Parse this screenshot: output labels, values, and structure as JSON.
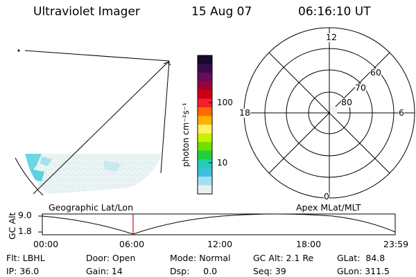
{
  "header": {
    "instrument": "Ultraviolet Imager",
    "date": "15 Aug 07",
    "time": "06:16:10 UT"
  },
  "colorbar": {
    "unit_label": "photon cm⁻²s⁻¹",
    "ticks": [
      "100",
      "10"
    ],
    "colors": [
      "#1a0a2e",
      "#3a0b4a",
      "#6a0a5a",
      "#a0003a",
      "#cc0010",
      "#f2202a",
      "#ff6a00",
      "#ffb000",
      "#fff06a",
      "#c8f000",
      "#70e000",
      "#20d040",
      "#20d0b0",
      "#40c0e0",
      "#a0e0f0",
      "#e8f0f0"
    ]
  },
  "polar_plot": {
    "labels": {
      "top": "12",
      "bottom": "0",
      "left": "18",
      "right": "6"
    },
    "lat_labels": [
      "60",
      "70",
      "80"
    ]
  },
  "timeline": {
    "title_left": "Geographic Lat/Lon",
    "title_right": "Apex MLat/MLT",
    "axis_label": "GC Alt",
    "y_ticks": [
      "9.0",
      "1.8"
    ],
    "x_ticks": [
      "00:00",
      "06:00",
      "12:00",
      "18:00",
      "23:59"
    ],
    "marker_color": "#d01010"
  },
  "footer": {
    "flt": "Flt: LBHL",
    "ip": "IP: 36.0",
    "door": "Door: Open",
    "gain": "Gain: 14",
    "mode": "Mode: Normal",
    "dsp": "Dsp:     0.0",
    "gcalt": "GC Alt: 2.1 Re",
    "seq": "Seq: 39",
    "glat": "GLat:  84.8",
    "glon": "GLon: 311.5"
  }
}
